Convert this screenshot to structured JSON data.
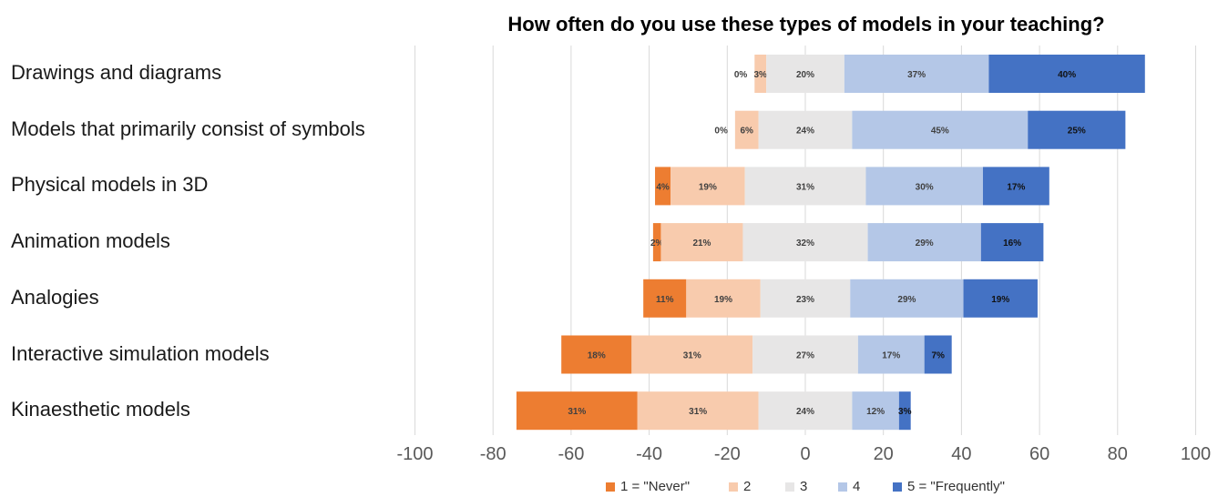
{
  "chart_data": {
    "type": "bar",
    "orientation": "horizontal",
    "stacked": true,
    "diverging": true,
    "title": "How often do you use these types of models in your teaching?",
    "categories": [
      "Drawings and diagrams",
      "Models that primarily consist of symbols",
      "Physical models in 3D",
      "Animation models",
      "Analogies",
      "Interactive simulation models",
      "Kinaesthetic models"
    ],
    "series": [
      {
        "name": "1 = \"Never\"",
        "color": "#ED7D31",
        "values": [
          0,
          0,
          4,
          2,
          11,
          18,
          31
        ],
        "labels": [
          "0%",
          "0%",
          "4%",
          "2%",
          "11%",
          "18%",
          "31%"
        ]
      },
      {
        "name": "2",
        "color": "#F8CBAD",
        "values": [
          3,
          6,
          19,
          21,
          19,
          31,
          31
        ],
        "labels": [
          "3%",
          "6%",
          "19%",
          "21%",
          "19%",
          "31%",
          "31%"
        ]
      },
      {
        "name": "3",
        "color": "#E7E6E6",
        "values": [
          20,
          24,
          31,
          32,
          23,
          27,
          24
        ],
        "labels": [
          "20%",
          "24%",
          "31%",
          "32%",
          "23%",
          "27%",
          "24%"
        ]
      },
      {
        "name": "4",
        "color": "#B4C7E7",
        "values": [
          37,
          45,
          30,
          29,
          29,
          17,
          12
        ],
        "labels": [
          "37%",
          "45%",
          "30%",
          "29%",
          "29%",
          "17%",
          "12%"
        ]
      },
      {
        "name": "5 = \"Frequently\"",
        "color": "#4472C4",
        "values": [
          40,
          25,
          17,
          16,
          19,
          7,
          3
        ],
        "labels": [
          "40%",
          "25%",
          "17%",
          "16%",
          "19%",
          "7%",
          "3%"
        ]
      }
    ],
    "xlim": [
      -100,
      100
    ],
    "x_ticks": [
      "-100",
      "-80",
      "-60",
      "-40",
      "-20",
      "0",
      "20",
      "40",
      "60",
      "80",
      "100"
    ],
    "grid": "vertical",
    "legend_position": "bottom"
  }
}
